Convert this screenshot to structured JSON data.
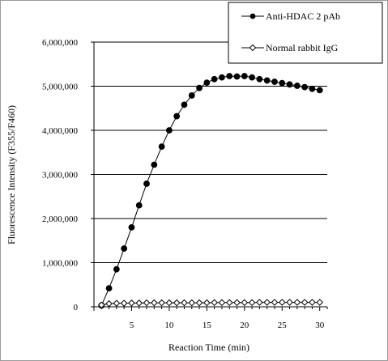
{
  "chart_data": {
    "type": "line",
    "xlabel": "Reaction Time (min)",
    "ylabel": "Fluorescence Intensity (F355/F460)",
    "xlim": [
      0,
      31
    ],
    "ylim": [
      0,
      6000000
    ],
    "x_ticks": [
      0,
      5,
      10,
      15,
      20,
      25,
      30
    ],
    "y_ticks": [
      0,
      1000000,
      2000000,
      3000000,
      4000000,
      5000000,
      6000000
    ],
    "y_tick_labels": [
      "0",
      "1,000,000",
      "2,000,000",
      "3,000,000",
      "4,000,000",
      "5,000,000",
      "6,000,000"
    ],
    "grid": "horizontal",
    "legend_position": "top-right",
    "series": [
      {
        "name": "Anti-HDAC 2 pAb",
        "marker": "filled-circle",
        "color": "#000000",
        "x": [
          1,
          2,
          3,
          4,
          5,
          6,
          7,
          8,
          9,
          10,
          11,
          12,
          13,
          14,
          15,
          16,
          17,
          18,
          19,
          20,
          21,
          22,
          23,
          24,
          25,
          26,
          27,
          28,
          29,
          30
        ],
        "values": [
          30000,
          420000,
          850000,
          1320000,
          1800000,
          2300000,
          2790000,
          3220000,
          3630000,
          4000000,
          4320000,
          4580000,
          4790000,
          4960000,
          5080000,
          5160000,
          5200000,
          5230000,
          5220000,
          5230000,
          5200000,
          5160000,
          5130000,
          5100000,
          5070000,
          5040000,
          5010000,
          4980000,
          4940000,
          4910000
        ]
      },
      {
        "name": "Normal rabbit IgG",
        "marker": "open-diamond",
        "color": "#000000",
        "x": [
          1,
          2,
          3,
          4,
          5,
          6,
          7,
          8,
          9,
          10,
          11,
          12,
          13,
          14,
          15,
          16,
          17,
          18,
          19,
          20,
          21,
          22,
          23,
          24,
          25,
          26,
          27,
          28,
          29,
          30
        ],
        "values": [
          40000,
          70000,
          80000,
          80000,
          85000,
          85000,
          90000,
          90000,
          90000,
          90000,
          90000,
          90000,
          90000,
          90000,
          90000,
          95000,
          95000,
          95000,
          95000,
          95000,
          95000,
          100000,
          100000,
          100000,
          100000,
          100000,
          100000,
          100000,
          100000,
          100000
        ]
      }
    ]
  }
}
